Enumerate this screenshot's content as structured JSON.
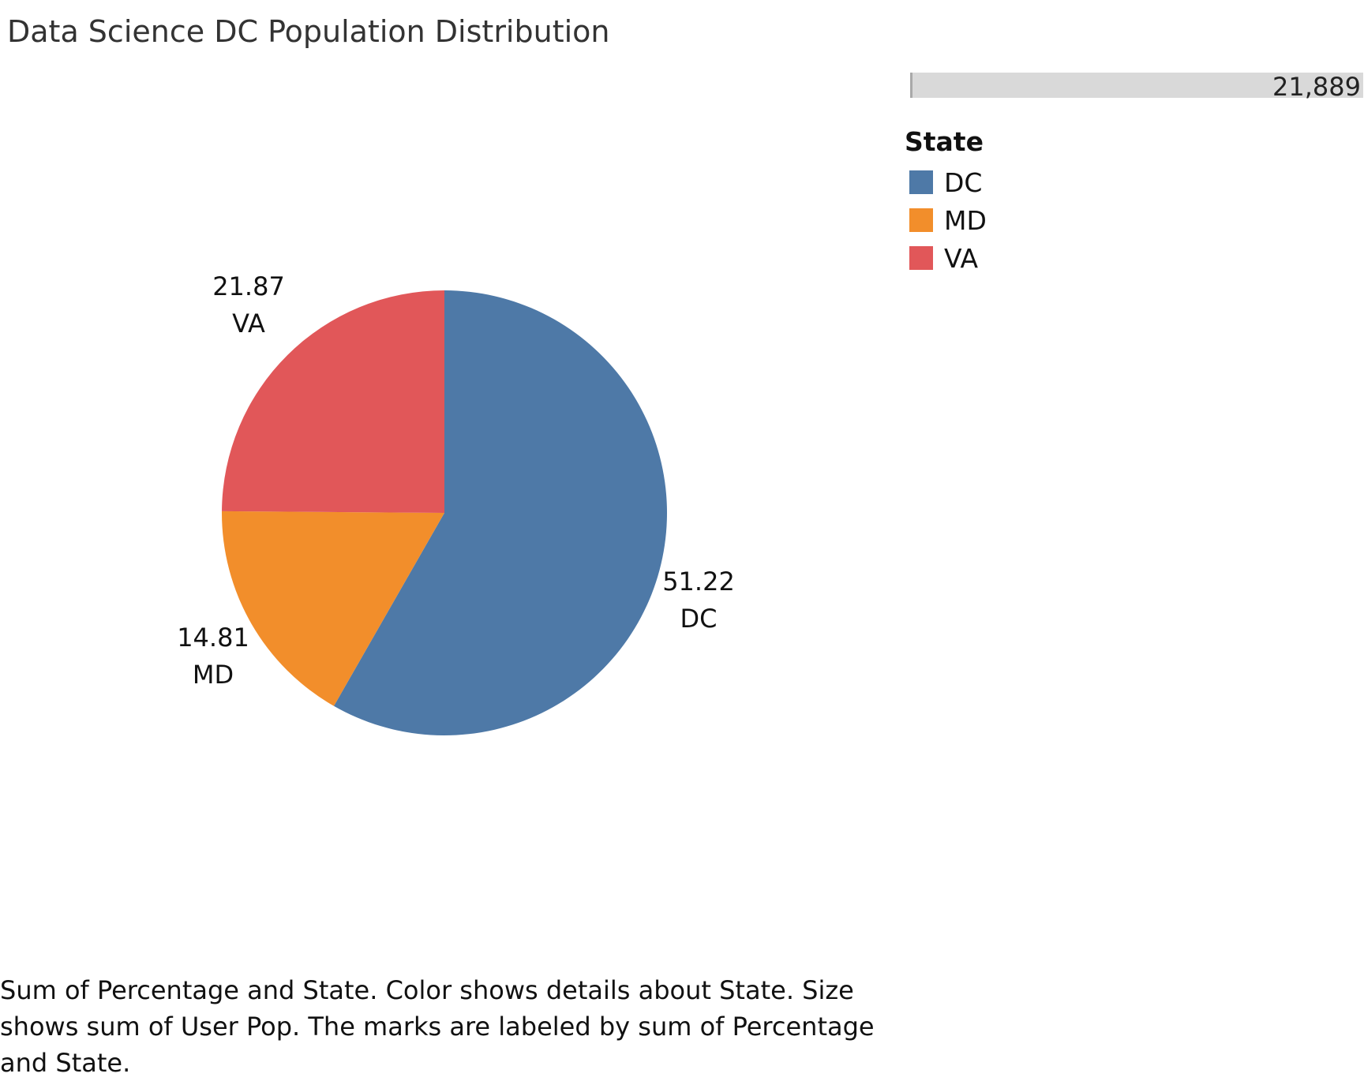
{
  "title": "Data Science DC Population Distribution",
  "size_legend": {
    "value_label": "21,889",
    "fill_fraction": 1.0
  },
  "legend": {
    "title": "State",
    "items": [
      {
        "label": "DC",
        "color": "#4e79a7"
      },
      {
        "label": "MD",
        "color": "#f28e2b"
      },
      {
        "label": "VA",
        "color": "#e15759"
      }
    ]
  },
  "chart_data": {
    "type": "pie",
    "categories": [
      "DC",
      "MD",
      "VA"
    ],
    "values": [
      51.22,
      14.81,
      21.87
    ],
    "value_labels": [
      "51.22",
      "14.81",
      "21.87"
    ],
    "colors": [
      "#4e79a7",
      "#f28e2b",
      "#e15759"
    ],
    "title": "Data Science DC Population Distribution",
    "legend_position": "top-right"
  },
  "caption": "Sum of Percentage and State.  Color shows details about State.  Size shows sum of User Pop.  The marks are labeled by sum of Percentage and State."
}
